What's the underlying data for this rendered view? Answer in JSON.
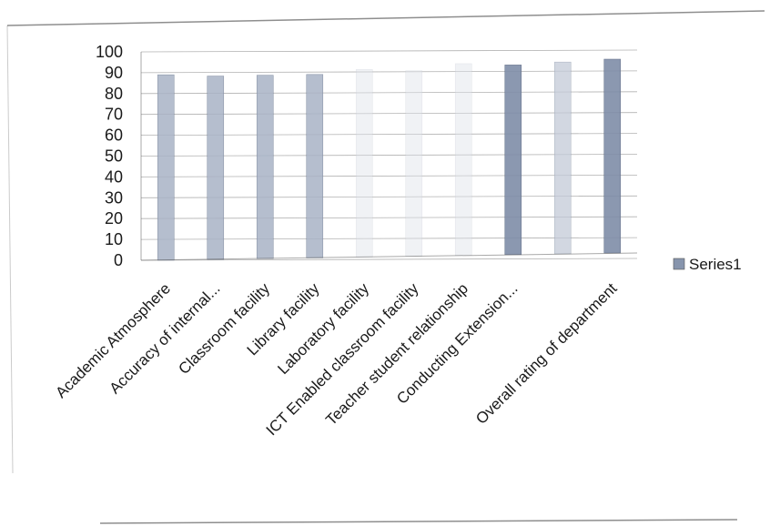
{
  "chart_data": {
    "type": "bar",
    "categories": [
      "Academic Atmosphere",
      "Accuracy of internal...",
      "Classroom facility",
      "Library facility",
      "Laboratory facility",
      "ICT Enabled classroom facility",
      "Teacher student relationship",
      "Conducting Extension...",
      "",
      "Overall rating of department"
    ],
    "series": [
      {
        "name": "Series1",
        "values": [
          89,
          88,
          88,
          88,
          90,
          89,
          92,
          91,
          92,
          93
        ],
        "color": "#9aa6bb"
      }
    ],
    "bar_styles": [
      "medium",
      "medium",
      "medium",
      "medium",
      "faint",
      "faint",
      "faint",
      "dark",
      "light",
      "dark"
    ],
    "ylim": [
      0,
      100
    ],
    "yticks": [
      "0",
      "10",
      "20",
      "30",
      "40",
      "50",
      "60",
      "70",
      "80",
      "90",
      "100"
    ],
    "grid": true,
    "legend_position": "right",
    "title": "",
    "xlabel": "",
    "ylabel": ""
  }
}
